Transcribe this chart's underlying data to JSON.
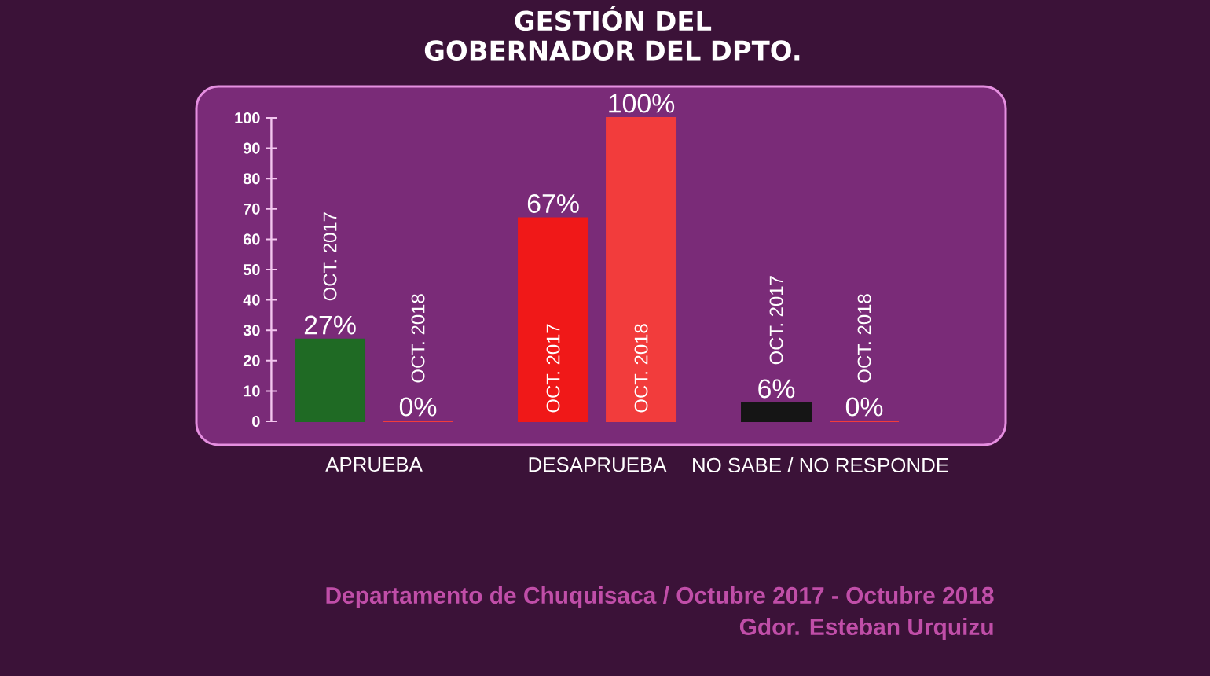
{
  "chart_data": {
    "type": "bar",
    "title": "GESTIÓN DEL GOBERNADOR DEL DPTO.",
    "categories": [
      "APRUEBA",
      "DESAPRUEBA",
      "NO SABE / NO RESPONDE"
    ],
    "series": [
      {
        "name": "OCT. 2017",
        "colors": [
          "#1f6a24",
          "#f01818",
          "#151515"
        ],
        "values": [
          27,
          67,
          6
        ],
        "value_labels": [
          "27%",
          "67%",
          "6%"
        ]
      },
      {
        "name": "OCT. 2018",
        "color": "#f23c3c",
        "values": [
          0,
          100,
          0
        ],
        "value_labels": [
          "0%",
          "100%",
          "0%"
        ]
      }
    ],
    "ylim": [
      0,
      100
    ],
    "yticks": [
      0,
      10,
      20,
      30,
      40,
      50,
      60,
      70,
      80,
      90,
      100
    ],
    "annotations": [
      "Departamento de Chuquisaca / Octubre 2017 - Octubre 2018",
      "Gdor. Esteban Urquizu"
    ]
  }
}
